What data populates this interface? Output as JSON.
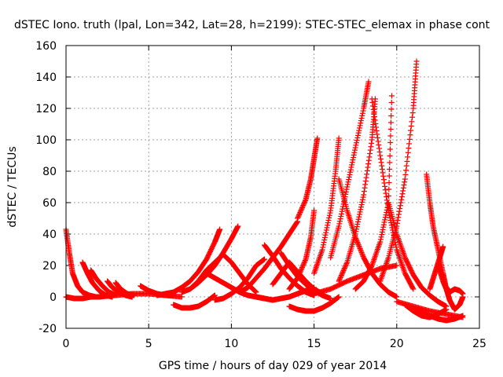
{
  "chart_data": {
    "type": "scatter",
    "title": "dSTEC Iono. truth (lpal, Lon=342, Lat=28, h=2199): STEC-STEC_elemax in phase cont",
    "xlabel": "GPS time / hours of day 029 of year 2014",
    "ylabel": "dSTEC  / TECUs",
    "xlim": [
      0,
      25
    ],
    "ylim": [
      -20,
      160
    ],
    "xticks": [
      0,
      5,
      10,
      15,
      20,
      25
    ],
    "yticks": [
      -20,
      0,
      20,
      40,
      60,
      80,
      100,
      120,
      140,
      160
    ],
    "grid": true,
    "marker": "+",
    "color": "#ff0000",
    "series": [
      {
        "x": [
          0.0,
          0.2,
          0.4,
          0.7,
          1.0,
          1.4,
          1.8
        ],
        "y": [
          43,
          28,
          15,
          7,
          3,
          1,
          0
        ]
      },
      {
        "x": [
          0.0,
          0.5,
          1.0,
          1.5,
          2.0,
          2.5
        ],
        "y": [
          0,
          -1,
          -1,
          0,
          0,
          1
        ]
      },
      {
        "x": [
          1.0,
          1.3,
          1.6,
          2.0,
          2.4,
          2.8
        ],
        "y": [
          22,
          15,
          9,
          4,
          1,
          0
        ]
      },
      {
        "x": [
          1.5,
          1.8,
          2.2,
          2.6,
          3.0
        ],
        "y": [
          17,
          12,
          7,
          3,
          1
        ]
      },
      {
        "x": [
          2.5,
          2.8,
          3.2,
          3.6,
          4.0
        ],
        "y": [
          10,
          6,
          3,
          1,
          0
        ]
      },
      {
        "x": [
          3.0,
          3.3,
          3.7,
          4.1
        ],
        "y": [
          9,
          5,
          2,
          1
        ]
      },
      {
        "x": [
          4.5,
          5.0,
          5.5,
          6.0,
          6.5
        ],
        "y": [
          7,
          4,
          2,
          1,
          1
        ]
      },
      {
        "x": [
          2.0,
          3.0,
          4.0,
          5.0,
          6.0,
          7.0
        ],
        "y": [
          0,
          1,
          2,
          2,
          1,
          0
        ]
      },
      {
        "x": [
          5.5,
          6.0,
          6.5,
          7.0,
          7.5,
          8.0,
          8.5,
          9.0,
          9.3
        ],
        "y": [
          1,
          2,
          3,
          6,
          10,
          16,
          24,
          35,
          43
        ]
      },
      {
        "x": [
          7.0,
          7.5,
          8.0,
          8.5,
          9.0,
          9.5,
          10.0,
          10.4
        ],
        "y": [
          3,
          5,
          9,
          14,
          20,
          28,
          37,
          45
        ]
      },
      {
        "x": [
          6.5,
          7.0,
          7.5,
          8.0,
          8.5,
          9.0
        ],
        "y": [
          -5,
          -7,
          -7,
          -6,
          -3,
          1
        ]
      },
      {
        "x": [
          7.5,
          8.0,
          8.5,
          9.0,
          9.5,
          10.0,
          10.5,
          11.0,
          11.5
        ],
        "y": [
          5,
          10,
          17,
          22,
          27,
          22,
          15,
          8,
          3
        ]
      },
      {
        "x": [
          8.5,
          9.0,
          9.5,
          10.0,
          10.5,
          11.0,
          11.5,
          12.0
        ],
        "y": [
          15,
          12,
          9,
          6,
          3,
          1,
          0,
          -1
        ]
      },
      {
        "x": [
          9.0,
          9.5,
          10.0,
          10.5,
          11.0,
          11.5,
          12.0
        ],
        "y": [
          -2,
          -1,
          2,
          6,
          12,
          20,
          24
        ]
      },
      {
        "x": [
          10.5,
          11.0,
          11.5,
          12.0,
          12.5,
          13.0,
          13.5,
          14.0
        ],
        "y": [
          3,
          6,
          12,
          18,
          25,
          32,
          40,
          48
        ]
      },
      {
        "x": [
          11.5,
          12.0,
          12.5,
          13.0,
          13.5,
          14.0,
          14.5,
          15.0
        ],
        "y": [
          0,
          -1,
          -2,
          -1,
          0,
          2,
          4,
          6
        ]
      },
      {
        "x": [
          12.0,
          12.5,
          13.0,
          13.5,
          14.0,
          14.5,
          15.0
        ],
        "y": [
          33,
          26,
          18,
          12,
          7,
          3,
          1
        ]
      },
      {
        "x": [
          12.5,
          13.0,
          13.5,
          14.0,
          14.5,
          15.0,
          15.5
        ],
        "y": [
          8,
          15,
          22,
          16,
          10,
          5,
          2
        ]
      },
      {
        "x": [
          13.0,
          13.5,
          14.0,
          14.5,
          15.0,
          15.5,
          16.0
        ],
        "y": [
          28,
          20,
          13,
          8,
          4,
          1,
          -1
        ]
      },
      {
        "x": [
          13.5,
          14.0,
          14.5,
          15.0,
          15.5,
          16.0,
          16.5
        ],
        "y": [
          -6,
          -8,
          -9,
          -9,
          -7,
          -4,
          0
        ]
      },
      {
        "x": [
          14.0,
          14.5,
          14.8,
          15.0,
          15.2
        ],
        "y": [
          50,
          62,
          75,
          88,
          101
        ]
      },
      {
        "x": [
          13.5,
          14.0,
          14.5,
          14.8,
          15.0
        ],
        "y": [
          5,
          12,
          24,
          38,
          55
        ]
      },
      {
        "x": [
          15.0,
          15.5,
          16.0,
          16.3,
          16.5
        ],
        "y": [
          15,
          30,
          55,
          80,
          101
        ]
      },
      {
        "x": [
          16.5,
          17.0,
          17.5,
          18.0,
          18.5,
          19.0,
          19.5,
          20.0
        ],
        "y": [
          75,
          55,
          38,
          25,
          15,
          8,
          3,
          0
        ]
      },
      {
        "x": [
          16.0,
          16.5,
          17.0,
          17.5,
          18.0,
          18.3
        ],
        "y": [
          25,
          45,
          70,
          95,
          120,
          137
        ]
      },
      {
        "x": [
          16.5,
          17.0,
          17.5,
          18.0,
          18.5,
          18.7
        ],
        "y": [
          10,
          22,
          40,
          65,
          100,
          126
        ]
      },
      {
        "x": [
          18.5,
          19.0,
          19.5,
          20.0,
          20.5,
          21.0
        ],
        "y": [
          126,
          90,
          55,
          30,
          15,
          5
        ]
      },
      {
        "x": [
          17.5,
          18.0,
          18.5,
          19.0,
          19.5,
          19.7
        ],
        "y": [
          5,
          10,
          20,
          35,
          60,
          128
        ]
      },
      {
        "x": [
          19.5,
          20.0,
          20.5,
          21.0,
          21.5,
          22.0,
          22.5,
          23.0
        ],
        "y": [
          60,
          40,
          25,
          14,
          6,
          1,
          -3,
          -6
        ]
      },
      {
        "x": [
          19.0,
          19.5,
          20.0,
          20.5,
          21.0,
          21.2
        ],
        "y": [
          10,
          25,
          45,
          75,
          120,
          150
        ]
      },
      {
        "x": [
          21.8,
          22.0,
          22.2,
          22.5,
          22.8,
          23.0
        ],
        "y": [
          78,
          60,
          45,
          30,
          15,
          5
        ]
      },
      {
        "x": [
          20.5,
          21.0,
          21.5,
          22.0,
          22.5,
          23.0
        ],
        "y": [
          -5,
          -9,
          -12,
          -13,
          -11,
          -8
        ]
      },
      {
        "x": [
          21.0,
          21.5,
          22.0,
          22.5,
          23.0,
          23.5,
          24.0
        ],
        "y": [
          -8,
          -10,
          -12,
          -14,
          -15,
          -14,
          -12
        ]
      },
      {
        "x": [
          22.0,
          22.3,
          22.6,
          22.8
        ],
        "y": [
          5,
          15,
          25,
          32
        ]
      },
      {
        "x": [
          22.5,
          22.8,
          23.0,
          23.2,
          23.5,
          23.8,
          24.0
        ],
        "y": [
          20,
          10,
          5,
          -2,
          -8,
          -5,
          0
        ]
      },
      {
        "x": [
          23.0,
          23.2,
          23.5,
          23.8,
          24.0
        ],
        "y": [
          6,
          3,
          5,
          4,
          2
        ]
      },
      {
        "x": [
          15.0,
          16.0,
          17.0,
          18.0,
          19.0,
          20.0
        ],
        "y": [
          2,
          5,
          10,
          14,
          18,
          20
        ]
      },
      {
        "x": [
          20.0,
          21.0,
          22.0,
          23.0,
          24.0
        ],
        "y": [
          -3,
          -6,
          -9,
          -11,
          -13
        ]
      }
    ]
  }
}
